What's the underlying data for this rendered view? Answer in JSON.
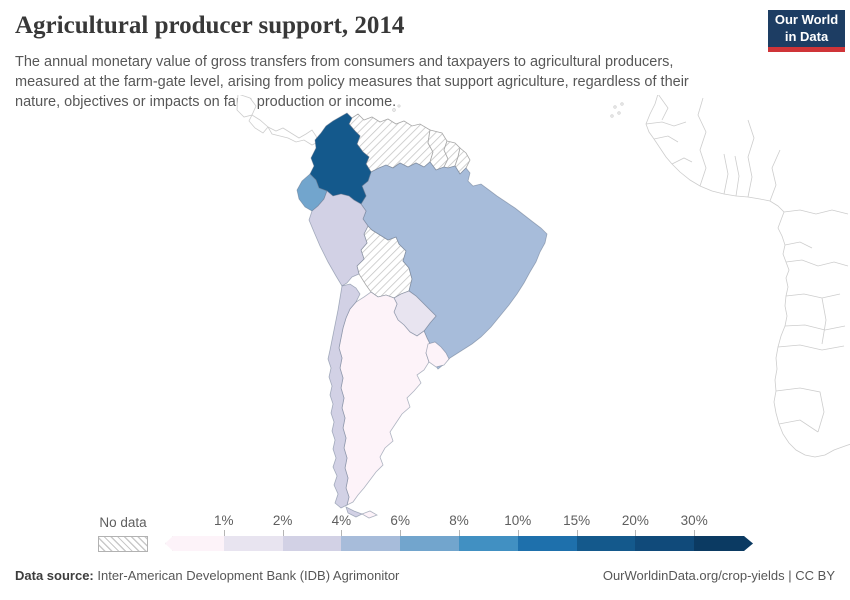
{
  "header": {
    "title": "Agricultural producer support, 2014",
    "subtitle": "The annual monetary value of gross transfers from consumers and taxpayers to agricultural producers, measured at the farm-gate level, arising from policy measures that support agriculture, regardless of their nature, objectives or impacts on farm production or income.",
    "logo": {
      "line1": "Our World",
      "line2": "in Data",
      "navy": "#1d3d63",
      "red": "#cf3438"
    }
  },
  "chart_data": {
    "type": "choropleth_map",
    "title": "Agricultural producer support, 2014",
    "unit": "%",
    "region_shown": "South America (west coast of Africa and Central America shown as empty outlines)",
    "no_data_label": "No data",
    "legend_ticks": [
      "1%",
      "2%",
      "4%",
      "6%",
      "8%",
      "10%",
      "15%",
      "20%",
      "30%"
    ],
    "legend_colors": [
      "#fdf3f9",
      "#e8e4f0",
      "#d2d1e5",
      "#a7bcda",
      "#72a5cd",
      "#4190c2",
      "#1e70ac",
      "#14598c",
      "#104a7a",
      "#0b3a62"
    ],
    "countries": [
      {
        "name": "Colombia",
        "bucket": "15-20%",
        "color": "#14598c"
      },
      {
        "name": "Ecuador",
        "bucket": "6-8%",
        "color": "#72a5cd"
      },
      {
        "name": "Brazil",
        "bucket": "4-6%",
        "color": "#a7bcda"
      },
      {
        "name": "Peru",
        "bucket": "2-4%",
        "color": "#d2d1e5"
      },
      {
        "name": "Chile",
        "bucket": "2-4%",
        "color": "#d2d1e5"
      },
      {
        "name": "Paraguay",
        "bucket": "1-2%",
        "color": "#e8e4f0"
      },
      {
        "name": "Argentina",
        "bucket": "<1%",
        "color": "#fdf3f9"
      },
      {
        "name": "Uruguay",
        "bucket": "<1%",
        "color": "#fdf3f9"
      },
      {
        "name": "Venezuela",
        "bucket": "No data",
        "color": null
      },
      {
        "name": "Guyana",
        "bucket": "No data",
        "color": null
      },
      {
        "name": "Suriname",
        "bucket": "No data",
        "color": null
      },
      {
        "name": "French Guiana",
        "bucket": "No data",
        "color": null
      },
      {
        "name": "Bolivia",
        "bucket": "No data",
        "color": null
      }
    ]
  },
  "footer": {
    "source_label": "Data source:",
    "source_value": "Inter-American Development Bank (IDB) Agrimonitor",
    "license": "OurWorldinData.org/crop-yields | CC BY"
  }
}
